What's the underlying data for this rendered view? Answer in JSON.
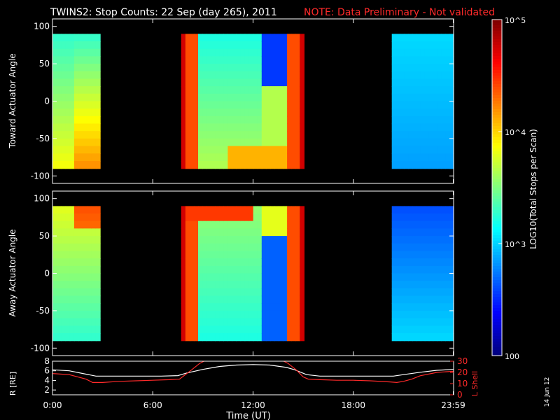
{
  "header": {
    "title": "TWINS2: Stop Counts: 22 Sep (day 265), 2011",
    "note": "NOTE: Data Preliminary - Not validated"
  },
  "footer": {
    "date_stamp": "14 Jun 12"
  },
  "colors": {
    "background": "#000000",
    "note": "#ff2a2a",
    "r_line": "#ffffff",
    "l_shell_line": "#ff2a2a"
  },
  "chart_data": [
    {
      "type": "heatmap",
      "ylabel": "Toward Actuator Angle",
      "ylim": [
        -110,
        110
      ],
      "yticks": [
        100,
        50,
        0,
        -50,
        -100
      ],
      "xlim": [
        0,
        24
      ],
      "colormap": "rainbow",
      "data_intervals_ut": [
        [
          0.0,
          2.85
        ],
        [
          7.7,
          15.05
        ],
        [
          20.3,
          24.0
        ]
      ],
      "approx_log10_counts": {
        "interval_1": "3.0-4.5",
        "interval_2": "3.0-5.0",
        "interval_3": "2.5-3.2"
      }
    },
    {
      "type": "heatmap",
      "ylabel": "Away Actuator Angle",
      "ylim": [
        -110,
        110
      ],
      "yticks": [
        100,
        50,
        0,
        -50,
        -100
      ],
      "xlim": [
        0,
        24
      ],
      "colormap": "rainbow",
      "data_intervals_ut": [
        [
          0.0,
          2.85
        ],
        [
          7.7,
          15.05
        ],
        [
          20.3,
          24.0
        ]
      ]
    },
    {
      "type": "line",
      "xlabel": "Time (UT)",
      "xticks": [
        "0:00",
        "6:00",
        "12:00",
        "18:00",
        "23:59"
      ],
      "xtick_hours": [
        0,
        6,
        12,
        18,
        23.98
      ],
      "xlim": [
        0,
        24
      ],
      "ylabel_left": "R [RE]",
      "ylim_left": [
        1,
        8
      ],
      "yticks_left": [
        2,
        4,
        6,
        8
      ],
      "ylabel_right": "L Shell",
      "ylim_right": [
        0,
        30
      ],
      "yticks_right": [
        0,
        10,
        20,
        30
      ],
      "series": [
        {
          "axis": "left",
          "x": [
            0,
            1,
            2,
            2.6,
            3.5,
            5,
            6.5,
            7.5,
            8,
            9,
            10,
            11,
            12,
            13,
            14,
            14.5,
            15.2,
            16,
            18,
            20,
            20.4,
            21,
            22,
            23,
            24
          ],
          "y": [
            6.2,
            6.0,
            5.3,
            4.9,
            4.9,
            4.9,
            4.9,
            5.0,
            5.5,
            6.3,
            6.9,
            7.2,
            7.3,
            7.2,
            6.7,
            6.2,
            5.2,
            4.9,
            4.9,
            4.9,
            4.9,
            5.2,
            5.7,
            6.1,
            6.3
          ]
        },
        {
          "axis": "right",
          "x": [
            0,
            1,
            2,
            2.4,
            3,
            4,
            5,
            6,
            7,
            7.6,
            8.3,
            8.8,
            9.2
          ],
          "y": [
            19,
            18,
            14,
            11,
            11,
            12,
            12.5,
            13,
            13.5,
            14,
            22,
            28,
            31
          ]
        },
        {
          "axis": "right",
          "x": [
            13.7,
            14.1,
            14.6,
            15.0,
            15.3,
            16,
            17,
            18,
            19,
            20.2,
            20.6,
            21,
            21.5,
            22,
            23,
            24
          ],
          "y": [
            31,
            28,
            22,
            16,
            14,
            13.5,
            13,
            13,
            12.5,
            11.5,
            11,
            12,
            14,
            17,
            20,
            21
          ]
        }
      ]
    }
  ],
  "colorbar": {
    "label": "LOG10(Total Stops per Scan)",
    "ticks": [
      {
        "text": "100",
        "log": 2
      },
      {
        "text": "10^3",
        "log": 3
      },
      {
        "text": "10^4",
        "log": 4
      },
      {
        "text": "10^5",
        "log": 5
      }
    ],
    "range_log": [
      2,
      5
    ]
  }
}
